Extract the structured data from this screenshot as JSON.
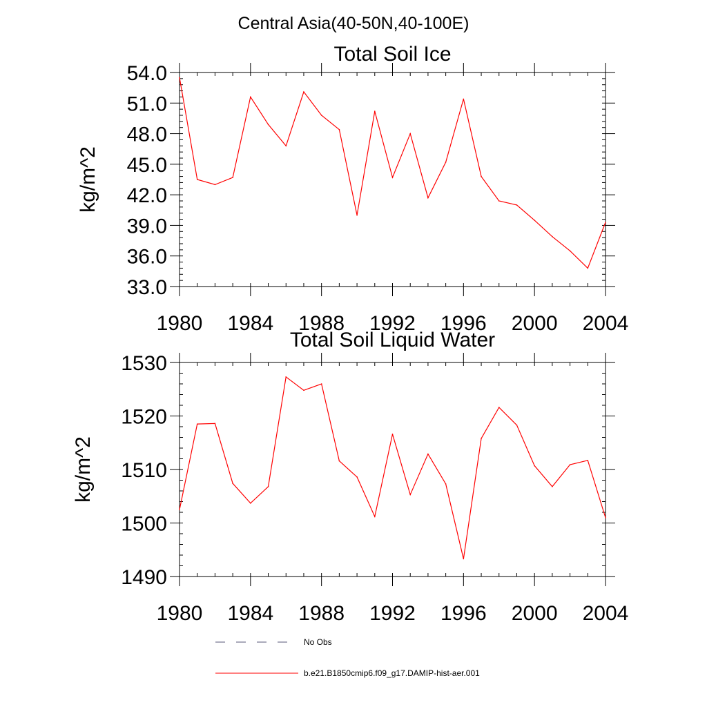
{
  "figure_title": "Central Asia(40-50N,40-100E)",
  "chart_data": [
    {
      "type": "line",
      "title": "Total Soil Ice",
      "xlabel": "",
      "ylabel": "kg/m^2",
      "xlim": [
        1980,
        2004
      ],
      "ylim": [
        33.0,
        54.0
      ],
      "x_ticks": [
        "1980",
        "1984",
        "1988",
        "1992",
        "1996",
        "2000",
        "2004"
      ],
      "y_ticks": [
        "33.0",
        "36.0",
        "39.0",
        "42.0",
        "45.0",
        "48.0",
        "51.0",
        "54.0"
      ],
      "x": [
        1980,
        1981,
        1982,
        1983,
        1984,
        1985,
        1986,
        1987,
        1988,
        1989,
        1990,
        1991,
        1992,
        1993,
        1994,
        1995,
        1996,
        1997,
        1998,
        1999,
        2000,
        2001,
        2002,
        2003,
        2004
      ],
      "series": [
        {
          "name": "b.e21.B1850cmip6.f09_g17.DAMIP-hist-aer.001",
          "color": "#ff0000",
          "values": [
            53.5,
            43.5,
            43.0,
            43.7,
            51.6,
            48.9,
            46.8,
            52.1,
            49.8,
            48.4,
            40.0,
            50.2,
            43.7,
            48.0,
            41.7,
            45.2,
            51.4,
            43.8,
            41.4,
            41.0,
            39.5,
            37.9,
            36.5,
            34.8,
            39.3
          ]
        }
      ]
    },
    {
      "type": "line",
      "title": "Total Soil Liquid Water",
      "xlabel": "",
      "ylabel": "kg/m^2",
      "xlim": [
        1980,
        2004
      ],
      "ylim": [
        1490,
        1530
      ],
      "x_ticks": [
        "1980",
        "1984",
        "1988",
        "1992",
        "1996",
        "2000",
        "2004"
      ],
      "y_ticks": [
        "1490",
        "1500",
        "1510",
        "1520",
        "1530"
      ],
      "x": [
        1980,
        1981,
        1982,
        1983,
        1984,
        1985,
        1986,
        1987,
        1988,
        1989,
        1990,
        1991,
        1992,
        1993,
        1994,
        1995,
        1996,
        1997,
        1998,
        1999,
        2000,
        2001,
        2002,
        2003,
        2004
      ],
      "series": [
        {
          "name": "b.e21.B1850cmip6.f09_g17.DAMIP-hist-aer.001",
          "color": "#ff0000",
          "values": [
            1502.5,
            1518.5,
            1518.6,
            1507.4,
            1503.7,
            1506.8,
            1527.3,
            1524.8,
            1526.0,
            1511.6,
            1508.6,
            1501.2,
            1516.6,
            1505.3,
            1512.9,
            1507.3,
            1493.3,
            1515.8,
            1521.6,
            1518.3,
            1510.7,
            1506.8,
            1510.9,
            1511.7,
            1501.0
          ]
        }
      ]
    }
  ],
  "legend": [
    {
      "label": "No Obs",
      "style": "dashed",
      "color": "#555577"
    },
    {
      "label": "b.e21.B1850cmip6.f09_g17.DAMIP-hist-aer.001",
      "style": "solid",
      "color": "#ff0000"
    }
  ]
}
